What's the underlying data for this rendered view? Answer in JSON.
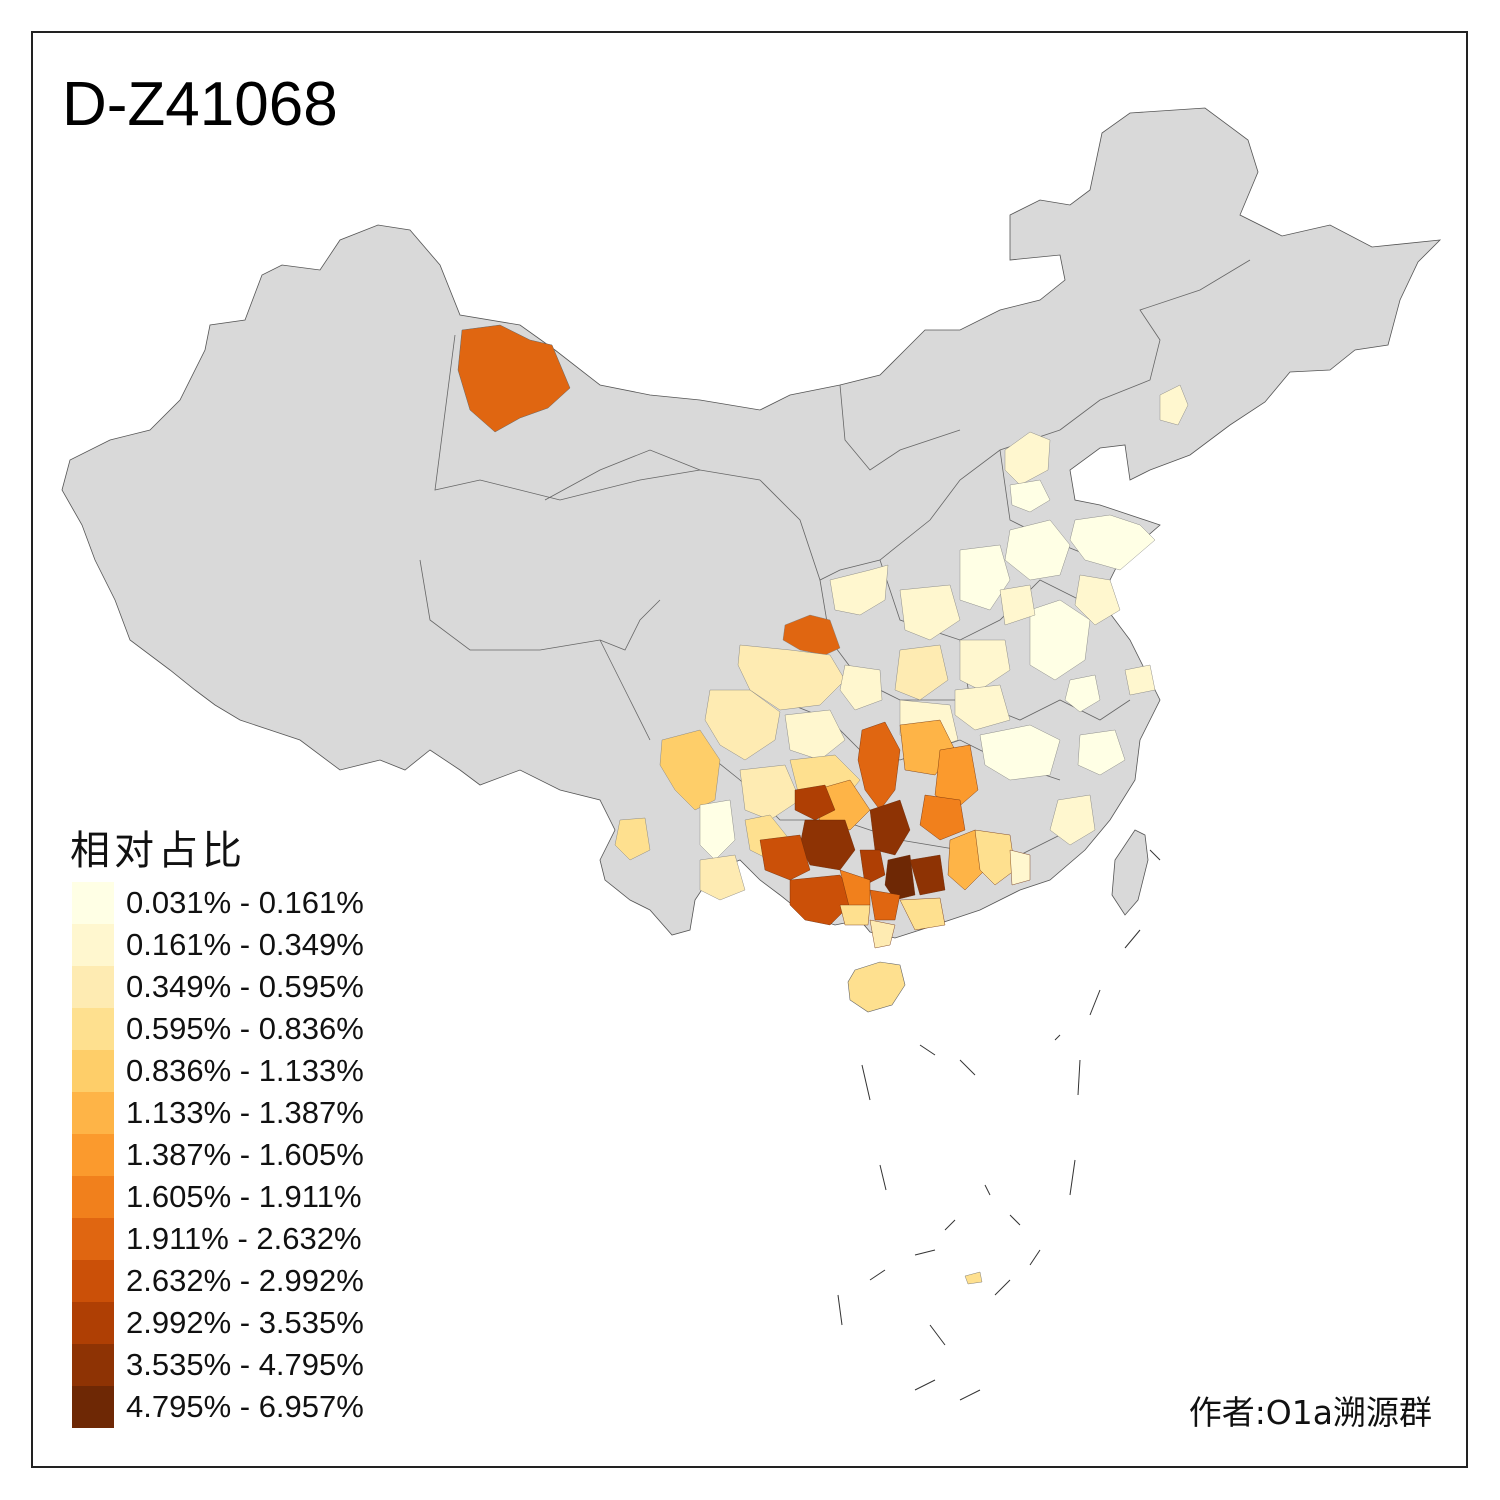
{
  "title": "D-Z41068",
  "legend": {
    "title": "相对占比",
    "items": [
      {
        "label": "0.031% - 0.161%",
        "color": "#FFFFE5"
      },
      {
        "label": "0.161% - 0.349%",
        "color": "#FFF7CF"
      },
      {
        "label": "0.349% - 0.595%",
        "color": "#FEEBB2"
      },
      {
        "label": "0.595% - 0.836%",
        "color": "#FEE08F"
      },
      {
        "label": "0.836% - 1.133%",
        "color": "#FECE69"
      },
      {
        "label": "1.133% - 1.387%",
        "color": "#FEB447"
      },
      {
        "label": "1.387% - 1.605%",
        "color": "#FB9A2D"
      },
      {
        "label": "1.605% - 1.911%",
        "color": "#F1801C"
      },
      {
        "label": "1.911% - 2.632%",
        "color": "#E06611"
      },
      {
        "label": "2.632% - 2.992%",
        "color": "#CB5008"
      },
      {
        "label": "2.992% - 3.535%",
        "color": "#AF3F04"
      },
      {
        "label": "3.535% - 4.795%",
        "color": "#8E3304"
      },
      {
        "label": "4.795% - 6.957%",
        "color": "#6E2805"
      }
    ]
  },
  "no_data_color": "#D9D9D9",
  "author": "作者:O1a溯源群"
}
